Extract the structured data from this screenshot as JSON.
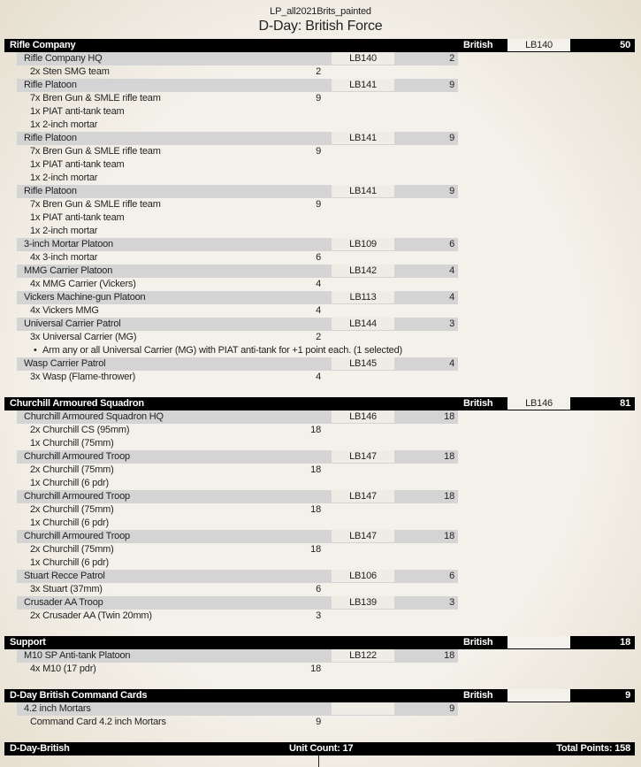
{
  "header": {
    "file": "LP_all2021Brits_painted",
    "title": "D-Day: British Force"
  },
  "sections": [
    {
      "name": "Rifle Company",
      "faction": "British",
      "code": "LB140",
      "points": "50",
      "units": [
        {
          "name": "Rifle Company HQ",
          "code": "LB140",
          "points": "2",
          "options": [
            {
              "name": "2x Sten SMG team",
              "points": "2"
            }
          ]
        },
        {
          "name": "Rifle Platoon",
          "code": "LB141",
          "points": "9",
          "options": [
            {
              "name": "7x Bren Gun & SMLE rifle team",
              "points": "9"
            },
            {
              "name": "1x PIAT anti-tank team",
              "points": ""
            },
            {
              "name": "1x 2-inch mortar",
              "points": ""
            }
          ]
        },
        {
          "name": "Rifle Platoon",
          "code": "LB141",
          "points": "9",
          "options": [
            {
              "name": "7x Bren Gun & SMLE rifle team",
              "points": "9"
            },
            {
              "name": "1x PIAT anti-tank team",
              "points": ""
            },
            {
              "name": "1x 2-inch mortar",
              "points": ""
            }
          ]
        },
        {
          "name": "Rifle Platoon",
          "code": "LB141",
          "points": "9",
          "options": [
            {
              "name": "7x Bren Gun & SMLE rifle team",
              "points": "9"
            },
            {
              "name": "1x PIAT anti-tank team",
              "points": ""
            },
            {
              "name": "1x 2-inch mortar",
              "points": ""
            }
          ]
        },
        {
          "name": "3-inch Mortar Platoon",
          "code": "LB109",
          "points": "6",
          "options": [
            {
              "name": "4x 3-inch mortar",
              "points": "6"
            }
          ]
        },
        {
          "name": "MMG Carrier Platoon",
          "code": "LB142",
          "points": "4",
          "options": [
            {
              "name": "4x MMG Carrier (Vickers)",
              "points": "4"
            }
          ]
        },
        {
          "name": "Vickers Machine-gun Platoon",
          "code": "LB113",
          "points": "4",
          "options": [
            {
              "name": "4x Vickers MMG",
              "points": "4"
            }
          ]
        },
        {
          "name": "Universal Carrier Patrol",
          "code": "LB144",
          "points": "3",
          "options": [
            {
              "name": "3x Universal Carrier (MG)",
              "points": "2"
            }
          ],
          "notes": [
            "Arm any or all Universal Carrier (MG) with PIAT anti-tank for +1 point each.  (1 selected)"
          ]
        },
        {
          "name": "Wasp Carrier Patrol",
          "code": "LB145",
          "points": "4",
          "options": [
            {
              "name": "3x Wasp (Flame-thrower)",
              "points": "4"
            }
          ]
        }
      ]
    },
    {
      "name": "Churchill Armoured Squadron",
      "faction": "British",
      "code": "LB146",
      "points": "81",
      "units": [
        {
          "name": "Churchill Armoured Squadron HQ",
          "code": "LB146",
          "points": "18",
          "options": [
            {
              "name": "2x Churchill CS (95mm)",
              "points": "18"
            },
            {
              "name": "1x Churchill (75mm)",
              "points": ""
            }
          ]
        },
        {
          "name": "Churchill Armoured Troop",
          "code": "LB147",
          "points": "18",
          "options": [
            {
              "name": "2x Churchill (75mm)",
              "points": "18"
            },
            {
              "name": "1x Churchill (6 pdr)",
              "points": ""
            }
          ]
        },
        {
          "name": "Churchill Armoured Troop",
          "code": "LB147",
          "points": "18",
          "options": [
            {
              "name": "2x Churchill (75mm)",
              "points": "18"
            },
            {
              "name": "1x Churchill (6 pdr)",
              "points": ""
            }
          ]
        },
        {
          "name": "Churchill Armoured Troop",
          "code": "LB147",
          "points": "18",
          "options": [
            {
              "name": "2x Churchill (75mm)",
              "points": "18"
            },
            {
              "name": "1x Churchill (6 pdr)",
              "points": ""
            }
          ]
        },
        {
          "name": "Stuart Recce Patrol",
          "code": "LB106",
          "points": "6",
          "options": [
            {
              "name": "3x Stuart (37mm)",
              "points": "6"
            }
          ]
        },
        {
          "name": "Crusader AA Troop",
          "code": "LB139",
          "points": "3",
          "options": [
            {
              "name": "2x Crusader AA (Twin 20mm)",
              "points": "3"
            }
          ]
        }
      ]
    },
    {
      "name": "Support",
      "faction": "British",
      "code": "",
      "points": "18",
      "units": [
        {
          "name": "M10 SP Anti-tank Platoon",
          "code": "LB122",
          "points": "18",
          "options": [
            {
              "name": "4x M10 (17 pdr)",
              "points": "18"
            }
          ]
        }
      ]
    },
    {
      "name": "D-Day British Command Cards",
      "faction": "British",
      "code": "",
      "points": "9",
      "units": [
        {
          "name": "4.2 inch Mortars",
          "code": "",
          "points": "9",
          "options": [
            {
              "name": "Command Card 4.2 inch Mortars",
              "points": "9"
            }
          ]
        }
      ]
    }
  ],
  "footer": {
    "name": "D-Day-British",
    "unit_count": "Unit Count: 17",
    "total": "Total Points: 158"
  }
}
